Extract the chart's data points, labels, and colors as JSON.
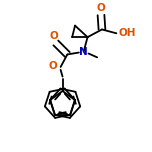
{
  "bg_color": "#ffffff",
  "bond_color": "#000000",
  "atom_colors": {
    "O": "#e05000",
    "N": "#0000cc",
    "C": "#000000"
  },
  "lw": 1.3,
  "fig_size": [
    1.52,
    1.52
  ],
  "dpi": 100
}
